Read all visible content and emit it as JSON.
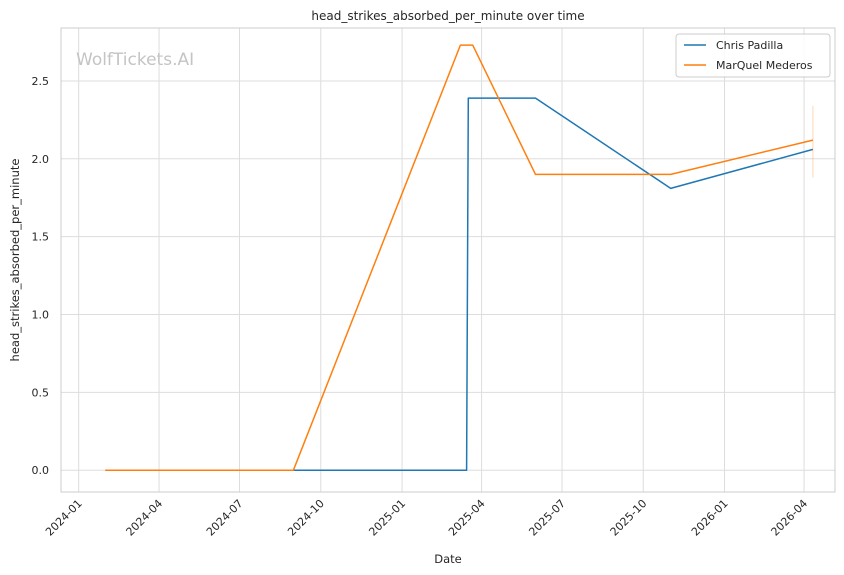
{
  "chart_data": {
    "type": "line",
    "title": "head_strikes_absorbed_per_minute over time",
    "xlabel": "Date",
    "ylabel": "head_strikes_absorbed_per_minute",
    "watermark": "WolfTickets.AI",
    "grid": true,
    "legend_position": "top-right",
    "xlim": [
      "2023-12-12",
      "2026-05-06"
    ],
    "ylim": [
      -0.14,
      2.84
    ],
    "x_ticks": [
      "2024-01",
      "2024-04",
      "2024-07",
      "2024-10",
      "2025-01",
      "2025-04",
      "2025-07",
      "2025-10",
      "2026-01",
      "2026-04"
    ],
    "y_ticks": [
      "0.0",
      "0.5",
      "1.0",
      "1.5",
      "2.0",
      "2.5"
    ],
    "series": [
      {
        "name": "Chris Padilla",
        "color": "#1f77b4",
        "points": [
          {
            "x": "2024-04-27",
            "y": 0.0
          },
          {
            "x": "2025-03-15",
            "y": 0.0
          },
          {
            "x": "2025-03-17",
            "y": 2.39
          },
          {
            "x": "2025-06-01",
            "y": 2.39
          },
          {
            "x": "2025-11-01",
            "y": 1.81
          },
          {
            "x": "2026-04-11",
            "y": 2.06
          }
        ]
      },
      {
        "name": "MarQuel Mederos",
        "color": "#ff7f0e",
        "points": [
          {
            "x": "2024-01-31",
            "y": 0.0
          },
          {
            "x": "2024-08-31",
            "y": 0.0
          },
          {
            "x": "2025-03-08",
            "y": 2.73
          },
          {
            "x": "2025-03-22",
            "y": 2.73
          },
          {
            "x": "2025-06-01",
            "y": 1.9
          },
          {
            "x": "2025-11-01",
            "y": 1.9
          },
          {
            "x": "2026-04-11",
            "y": 2.12
          }
        ],
        "error_bar": {
          "x": "2026-04-11",
          "low": 1.88,
          "high": 2.34
        }
      }
    ]
  }
}
